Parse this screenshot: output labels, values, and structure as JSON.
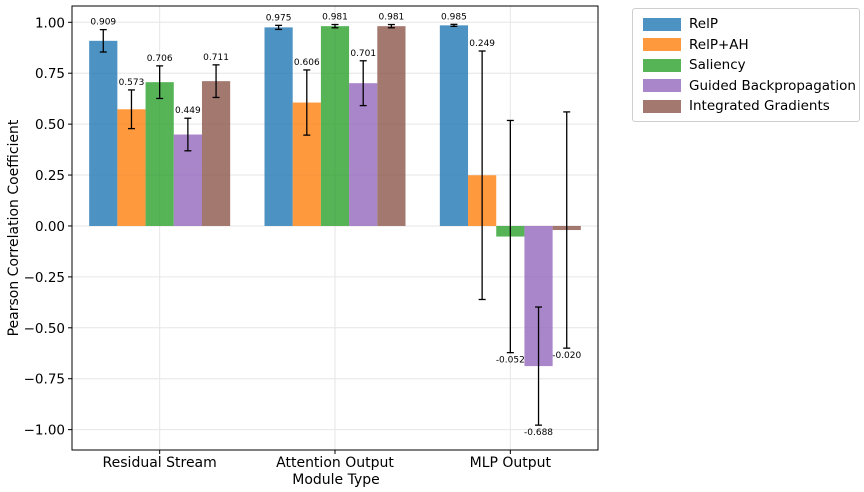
{
  "chart_data": {
    "type": "bar",
    "title": "",
    "xlabel": "Module Type",
    "ylabel": "Pearson Correlation Coefficient",
    "ylim": [
      -1.1,
      1.08
    ],
    "yticks": [
      -1.0,
      -0.75,
      -0.5,
      -0.25,
      0.0,
      0.25,
      0.5,
      0.75,
      1.0
    ],
    "ytick_labels": [
      "−1.00",
      "−0.75",
      "−0.50",
      "−0.25",
      "0.00",
      "0.25",
      "0.50",
      "0.75",
      "1.00"
    ],
    "grid": true,
    "legend_position": "outside-top-right",
    "categories": [
      "Residual Stream",
      "Attention Output",
      "MLP Output"
    ],
    "series": [
      {
        "name": "RelP",
        "color": "#1f77b4",
        "values": [
          0.909,
          0.975,
          0.985
        ],
        "error": [
          0.055,
          0.01,
          0.005
        ],
        "labels": [
          "0.909",
          "0.975",
          "0.985"
        ]
      },
      {
        "name": "RelP+AH",
        "color": "#ff7f0e",
        "values": [
          0.573,
          0.606,
          0.249
        ],
        "error": [
          0.095,
          0.16,
          0.61
        ],
        "labels": [
          "0.573",
          "0.606",
          "0.249"
        ]
      },
      {
        "name": "Saliency",
        "color": "#2ca02c",
        "values": [
          0.706,
          0.981,
          -0.052
        ],
        "error": [
          0.08,
          0.008,
          0.57
        ],
        "labels": [
          "0.706",
          "0.981",
          "-0.052"
        ]
      },
      {
        "name": "Guided Backpropagation",
        "color": "#9467bd",
        "values": [
          0.449,
          0.701,
          -0.688
        ],
        "error": [
          0.08,
          0.11,
          0.29
        ],
        "labels": [
          "0.449",
          "0.701",
          "-0.688"
        ]
      },
      {
        "name": "Integrated Gradients",
        "color": "#8c564b",
        "values": [
          0.711,
          0.981,
          -0.02
        ],
        "error": [
          0.08,
          0.008,
          0.58
        ],
        "labels": [
          "0.711",
          "0.981",
          "-0.020"
        ]
      }
    ]
  }
}
